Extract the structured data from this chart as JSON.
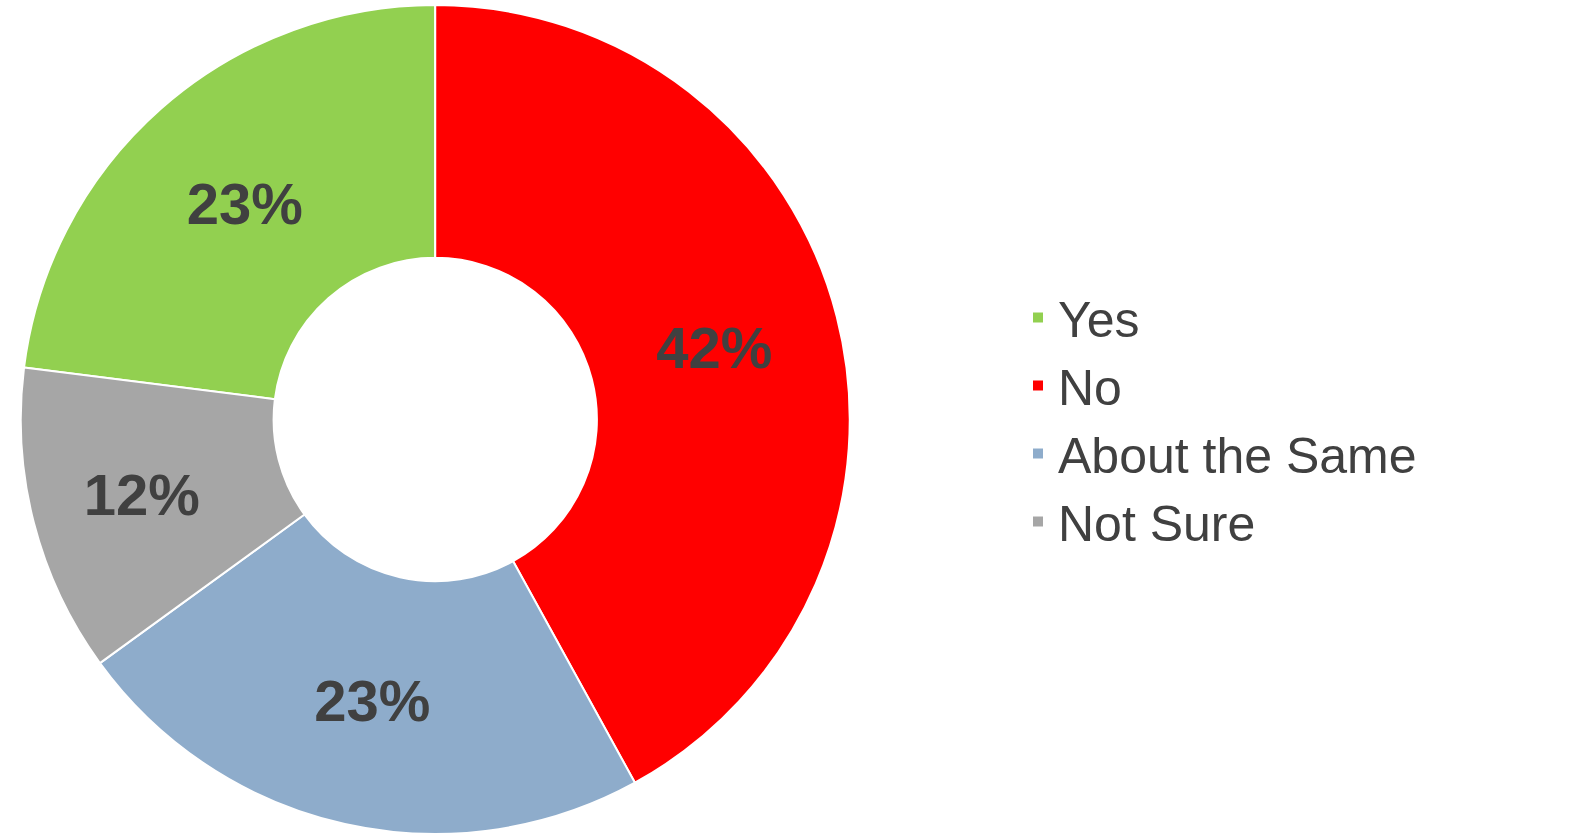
{
  "chart_data": {
    "type": "donut",
    "categories": [
      "Yes",
      "No",
      "About the Same",
      "Not Sure"
    ],
    "values": [
      23,
      42,
      23,
      12
    ],
    "value_labels": [
      "23%",
      "42%",
      "23%",
      "12%"
    ],
    "colors": [
      "#92d050",
      "#ff0000",
      "#8eaccb",
      "#a6a6a6"
    ],
    "legend": "right"
  }
}
